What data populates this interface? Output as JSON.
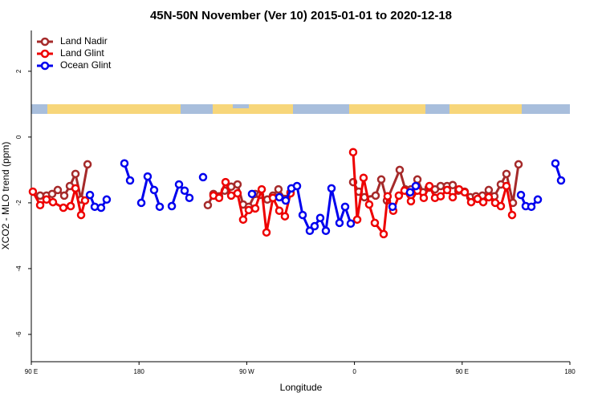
{
  "chart_data": {
    "type": "line",
    "title": "45N-50N November (Ver 10)   2015-01-01 to 2020-12-18",
    "xlabel": "Longitude",
    "ylabel": "XCO2 - MLO trend (ppm)",
    "xlim": [
      90,
      540
    ],
    "xticks": [
      {
        "value": 90,
        "label": "90 E"
      },
      {
        "value": 180,
        "label": "180"
      },
      {
        "value": 270,
        "label": "90 W"
      },
      {
        "value": 360,
        "label": "0"
      },
      {
        "value": 450,
        "label": "90 E"
      },
      {
        "value": 540,
        "label": "180"
      }
    ],
    "ylim": [
      -6.83,
      3.24
    ],
    "yticks": [
      -6,
      -4,
      -2,
      0,
      2
    ],
    "legend": "upper left",
    "series": [
      {
        "name": "Land Nadir",
        "color": "#a52a2a",
        "x": [
          97.4,
          102.7,
          107.4,
          112.1,
          117.5,
          122.2,
          126.9,
          131.6,
          137.0,
          null,
          237.5,
          242.2,
          246.9,
          251.6,
          257.0,
          262.3,
          267.0,
          271.7,
          277.1,
          281.1,
          287.2,
          291.9,
          296.5,
          301.9,
          306.6,
          null,
          358.9,
          363.6,
          368.3,
          377.7,
          382.4,
          387.1,
          397.8,
          402.5,
          407.2,
          412.6,
          417.3,
          422.0,
          427.3,
          432.0,
          437.4,
          442.1,
          446.8,
          452.1,
          456.8,
          461.5,
          466.9,
          472.2,
          476.9,
          482.3,
          487.0,
          492.4,
          497.1
        ],
        "values": [
          -1.78,
          -1.78,
          -1.73,
          -1.61,
          -1.78,
          -1.49,
          -1.12,
          -1.9,
          -0.83,
          null,
          -2.07,
          -1.73,
          -1.8,
          -1.63,
          -1.51,
          -1.44,
          -2.05,
          -2.12,
          -1.73,
          -1.76,
          -1.9,
          -1.78,
          -1.59,
          -1.88,
          -1.68,
          null,
          -1.37,
          -1.66,
          -1.83,
          -1.78,
          -1.29,
          -1.93,
          -1.0,
          -1.59,
          -1.59,
          -1.29,
          -1.68,
          -1.54,
          -1.59,
          -1.49,
          -1.49,
          -1.46,
          -1.63,
          -1.66,
          -1.83,
          -1.8,
          -1.78,
          -1.61,
          -1.8,
          -1.44,
          -1.12,
          -2.0,
          -0.83
        ]
      },
      {
        "name": "Land Glint",
        "color": "#ee0000",
        "x": [
          91.3,
          97.4,
          102.7,
          108.1,
          116.8,
          122.9,
          126.9,
          131.6,
          134.9,
          null,
          242.2,
          246.9,
          252.3,
          257.0,
          262.3,
          267.0,
          271.7,
          277.1,
          282.5,
          286.5,
          291.9,
          297.2,
          301.9,
          306.6,
          null,
          358.9,
          362.3,
          367.6,
          372.3,
          377.0,
          384.4,
          387.7,
          392.4,
          397.1,
          401.8,
          407.2,
          412.6,
          417.9,
          422.6,
          427.3,
          432.0,
          437.4,
          442.1,
          447.4,
          452.1,
          457.5,
          462.9,
          467.6,
          472.2,
          477.6,
          482.3,
          487.0,
          491.7
        ],
        "values": [
          -1.66,
          -2.07,
          -1.9,
          -1.98,
          -2.15,
          -2.1,
          -1.56,
          -2.37,
          -1.93,
          null,
          -1.78,
          -1.85,
          -1.37,
          -1.78,
          -1.71,
          -2.51,
          -2.22,
          -2.17,
          -1.59,
          -2.9,
          -1.85,
          -2.24,
          -2.41,
          -1.71,
          null,
          -0.46,
          -2.51,
          -1.24,
          -2.05,
          -2.61,
          -2.95,
          -1.8,
          -2.24,
          -1.78,
          -1.63,
          -1.95,
          -1.63,
          -1.85,
          -1.49,
          -1.85,
          -1.8,
          -1.61,
          -1.83,
          -1.59,
          -1.68,
          -1.98,
          -1.88,
          -1.98,
          -1.83,
          -2.0,
          -2.1,
          -1.49,
          -2.37
        ]
      },
      {
        "name": "Ocean Glint",
        "color": "#0000ee",
        "x": [
          139.0,
          143.0,
          148.3,
          153.0,
          null,
          167.8,
          172.5,
          null,
          181.9,
          187.2,
          192.6,
          197.3,
          null,
          207.4,
          213.4,
          218.1,
          222.1,
          null,
          233.5,
          null,
          274.4,
          null,
          297.2,
          302.6,
          307.3,
          312.0,
          316.7,
          322.7,
          326.7,
          331.4,
          336.1,
          340.8,
          347.5,
          352.2,
          356.9,
          null,
          391.8,
          null,
          406.5,
          411.2,
          null,
          499.1,
          503.1,
          507.8,
          513.2,
          null,
          527.9,
          532.6
        ],
        "values": [
          -1.76,
          -2.12,
          -2.15,
          -1.9,
          null,
          -0.8,
          -1.32,
          null,
          -2.0,
          -1.2,
          -1.61,
          -2.12,
          null,
          -2.1,
          -1.44,
          -1.63,
          -1.85,
          null,
          -1.22,
          null,
          -1.73,
          null,
          -1.83,
          -1.93,
          -1.56,
          -1.49,
          -2.37,
          -2.85,
          -2.71,
          -2.46,
          -2.85,
          -1.56,
          -2.61,
          -2.12,
          -2.63,
          null,
          -2.12,
          null,
          -1.68,
          -1.49,
          null,
          -1.76,
          -2.1,
          -2.12,
          -1.9,
          null,
          -0.8,
          -1.32
        ]
      }
    ]
  }
}
